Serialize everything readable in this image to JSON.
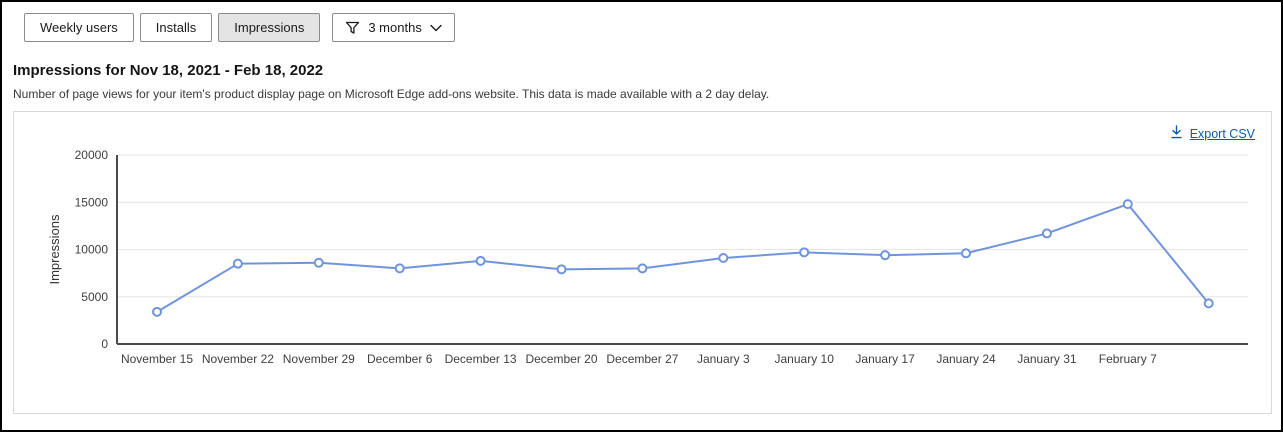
{
  "toolbar": {
    "buttons": [
      {
        "label": "Weekly users",
        "selected": false
      },
      {
        "label": "Installs",
        "selected": false
      },
      {
        "label": "Impressions",
        "selected": true
      }
    ],
    "filter": {
      "label": "3 months"
    }
  },
  "section": {
    "title": "Impressions for Nov 18, 2021 - Feb 18, 2022",
    "description": "Number of page views for your item's product display page on Microsoft Edge add-ons website. This data is made available with a 2 day delay."
  },
  "panel": {
    "export_label": "Export CSV"
  },
  "chart_data": {
    "type": "line",
    "title": "",
    "xlabel": "",
    "ylabel": "Impressions",
    "ylim": [
      0,
      20000
    ],
    "yticks": [
      0,
      5000,
      10000,
      15000,
      20000
    ],
    "grid": true,
    "legend": "none",
    "categories": [
      "November 15",
      "November 22",
      "November 29",
      "December 6",
      "December 13",
      "December 20",
      "December 27",
      "January 3",
      "January 10",
      "January 17",
      "January 24",
      "January 31",
      "February 7",
      ""
    ],
    "values": [
      3400,
      8500,
      8600,
      8000,
      8800,
      7900,
      8000,
      9100,
      9700,
      9400,
      9600,
      11700,
      14800,
      4300
    ],
    "series_color": "#7094DB",
    "marker": "open-circle",
    "grid_color": "#e6e6e6",
    "axis_color": "#4a4a4a",
    "tick_label_color": "#3f3f3f"
  }
}
